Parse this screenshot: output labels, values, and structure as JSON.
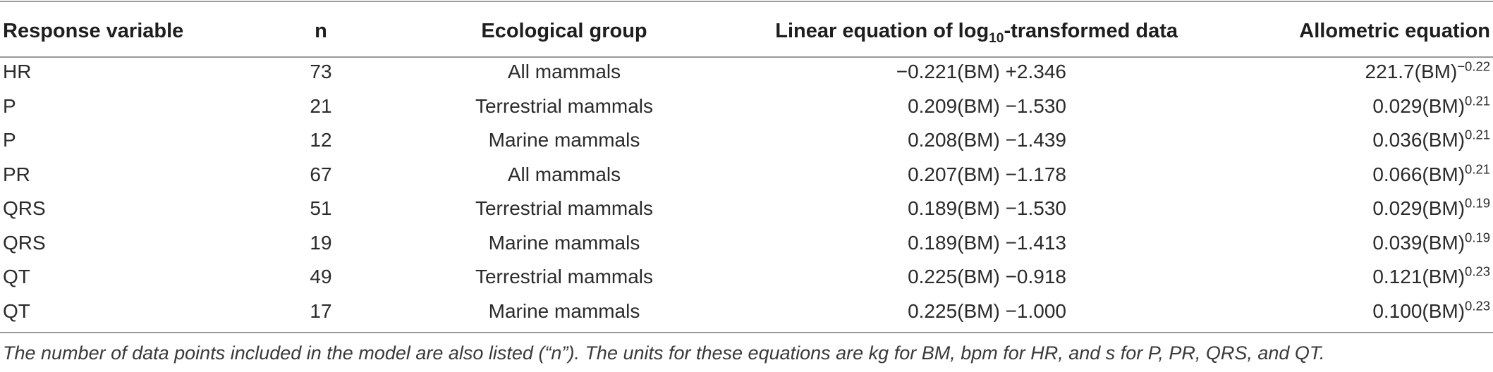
{
  "headers": {
    "response_variable": "Response variable",
    "n": "n",
    "ecological_group": "Ecological group",
    "linear_prefix": "Linear equation of log",
    "linear_sub": "10",
    "linear_suffix": "-transformed data",
    "allometric": "Allometric equation"
  },
  "rows": [
    {
      "response": "HR",
      "n": "73",
      "group": "All mammals",
      "linear": "−0.221(BM) +2.346",
      "allo_base": "221.7(BM)",
      "allo_exp": "−0.22"
    },
    {
      "response": "P",
      "n": "21",
      "group": "Terrestrial mammals",
      "linear": "0.209(BM) −1.530",
      "allo_base": "0.029(BM)",
      "allo_exp": "0.21"
    },
    {
      "response": "P",
      "n": "12",
      "group": "Marine mammals",
      "linear": "0.208(BM) −1.439",
      "allo_base": "0.036(BM)",
      "allo_exp": "0.21"
    },
    {
      "response": "PR",
      "n": "67",
      "group": "All mammals",
      "linear": "0.207(BM) −1.178",
      "allo_base": "0.066(BM)",
      "allo_exp": "0.21"
    },
    {
      "response": "QRS",
      "n": "51",
      "group": "Terrestrial mammals",
      "linear": "0.189(BM) −1.530",
      "allo_base": "0.029(BM)",
      "allo_exp": "0.19"
    },
    {
      "response": "QRS",
      "n": "19",
      "group": "Marine mammals",
      "linear": "0.189(BM) −1.413",
      "allo_base": "0.039(BM)",
      "allo_exp": "0.19"
    },
    {
      "response": "QT",
      "n": "49",
      "group": "Terrestrial mammals",
      "linear": "0.225(BM) −0.918",
      "allo_base": "0.121(BM)",
      "allo_exp": "0.23"
    },
    {
      "response": "QT",
      "n": "17",
      "group": "Marine mammals",
      "linear": "0.225(BM) −1.000",
      "allo_base": "0.100(BM)",
      "allo_exp": "0.23"
    }
  ],
  "footnote": "The number of data points included in the model are also listed (“n”). The units for these equations are kg for BM, bpm for HR, and s for P, PR, QRS, and QT."
}
